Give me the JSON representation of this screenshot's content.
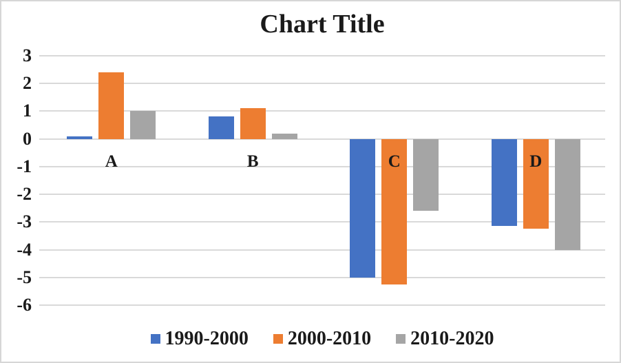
{
  "chart_data": {
    "type": "bar",
    "title": "Chart Title",
    "categories": [
      "A",
      "B",
      "C",
      "D"
    ],
    "series": [
      {
        "name": "1990-2000",
        "color": "#4472C4",
        "values": [
          0.1,
          0.8,
          -5.0,
          -3.15
        ]
      },
      {
        "name": "2000-2010",
        "color": "#ED7D31",
        "values": [
          2.4,
          1.1,
          -5.25,
          -3.25
        ]
      },
      {
        "name": "2010-2020",
        "color": "#A5A5A5",
        "values": [
          1.0,
          0.2,
          -2.6,
          -4.0
        ]
      }
    ],
    "ylim": [
      -6,
      3
    ],
    "yticks": [
      "3",
      "2",
      "1",
      "0",
      "-1",
      "-2",
      "-3",
      "-4",
      "-5",
      "-6"
    ],
    "grid": true,
    "gridline_color": "#D9D9D9",
    "border_color": "#D6D6D6",
    "background_color": "#FFFFFF",
    "text_color": "#1A1A1A",
    "legend_position": "bottom"
  }
}
